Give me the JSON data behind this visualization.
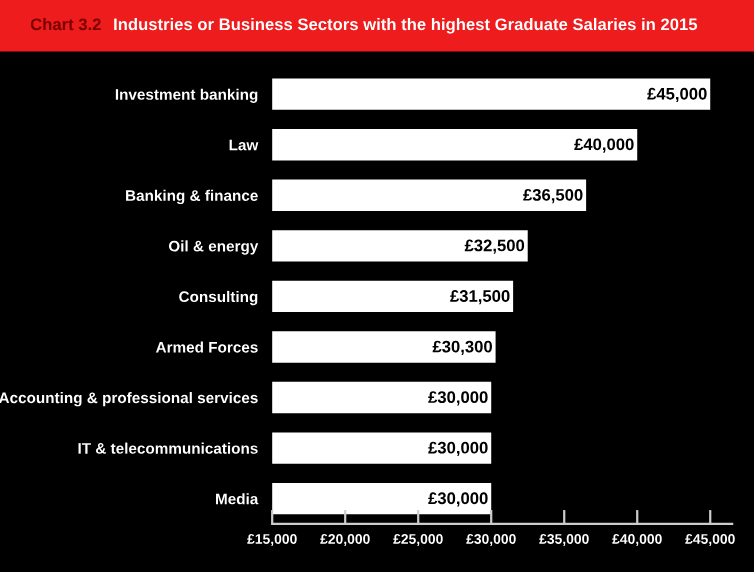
{
  "chart_data": {
    "type": "bar",
    "orientation": "horizontal",
    "title": "Industries or Business Sectors with the highest Graduate Salaries in 2015",
    "annotations": [
      "Chart 3.2"
    ],
    "categories": [
      "Investment banking",
      "Law",
      "Banking & finance",
      "Oil & energy",
      "Consulting",
      "Armed Forces",
      "Accounting & professional services",
      "IT & telecommunications",
      "Media"
    ],
    "values": [
      45000,
      40000,
      36500,
      32500,
      31500,
      30300,
      30000,
      30000,
      30000
    ],
    "value_labels": [
      "£45,000",
      "£40,000",
      "£36,500",
      "£32,500",
      "£31,500",
      "£30,300",
      "£30,000",
      "£30,000",
      "£30,000"
    ],
    "color": "#ffffff",
    "xlim": [
      15000,
      46500
    ],
    "xticks": [
      {
        "value": 15000,
        "label": "£15,000"
      },
      {
        "value": 20000,
        "label": "£20,000"
      },
      {
        "value": 25000,
        "label": "£25,000"
      },
      {
        "value": 30000,
        "label": "£30,000"
      },
      {
        "value": 35000,
        "label": "£35,000"
      },
      {
        "value": 40000,
        "label": "£40,000"
      },
      {
        "value": 45000,
        "label": "£45,000"
      }
    ],
    "grid": false,
    "legend": false
  }
}
